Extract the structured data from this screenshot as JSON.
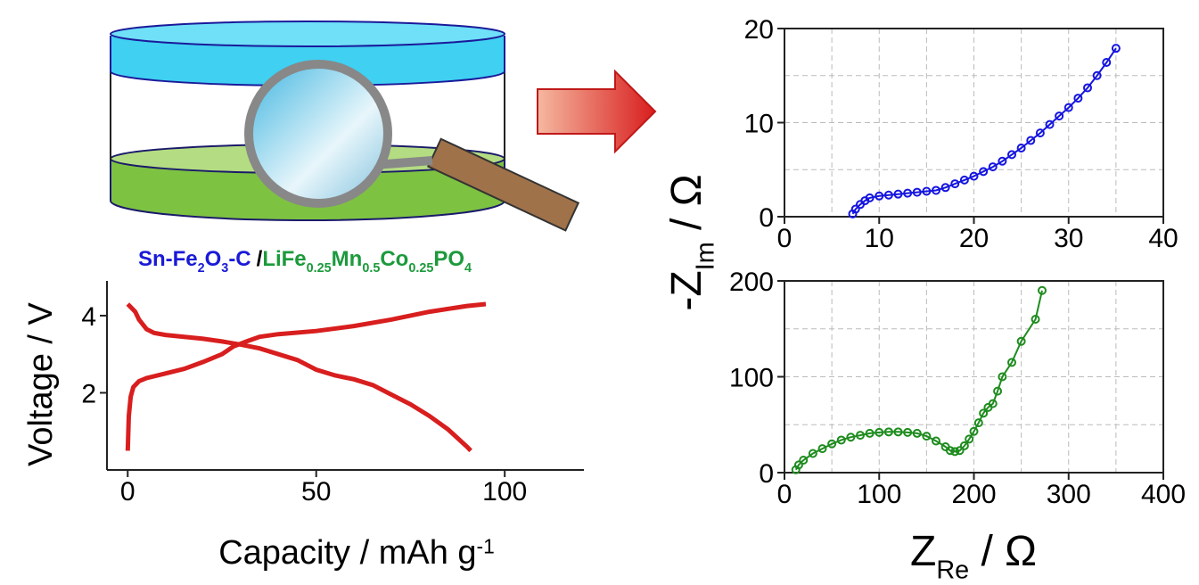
{
  "cell_label": {
    "anode": [
      "Sn-Fe",
      "2",
      "O",
      "3",
      "-C"
    ],
    "anode_color": "#1a1ad8",
    "separator": "/",
    "cathode": [
      "LiFe",
      "0.25",
      "Mn",
      "0.5",
      "Co",
      "0.25",
      "PO",
      "4"
    ],
    "cathode_color": "#1c9a3c"
  },
  "chart_data": [
    {
      "type": "line",
      "ylabel": "Voltage / V",
      "xlabel": [
        "Capacity / mAh g",
        "-1"
      ],
      "xlim": [
        -5.5,
        121
      ],
      "xticks": [
        0,
        50,
        100
      ],
      "ylim": [
        0,
        4.9
      ],
      "yticks": [
        2,
        4
      ],
      "color": "#d81e1e",
      "series": [
        {
          "x": [
            0,
            0.3,
            0.8,
            1.5,
            3,
            5,
            10,
            15,
            20,
            25,
            28,
            32,
            35,
            40,
            50,
            60,
            70,
            80,
            90,
            95
          ],
          "values": [
            0.5,
            1.4,
            1.9,
            2.15,
            2.3,
            2.38,
            2.5,
            2.62,
            2.8,
            3.0,
            3.2,
            3.35,
            3.45,
            3.52,
            3.6,
            3.73,
            3.9,
            4.1,
            4.25,
            4.3
          ]
        },
        {
          "x": [
            0,
            1,
            2,
            3,
            5,
            7,
            10,
            15,
            20,
            25,
            30,
            35,
            40,
            45,
            50,
            55,
            60,
            65,
            70,
            75,
            80,
            85,
            90,
            91
          ],
          "values": [
            4.3,
            4.2,
            4.1,
            3.9,
            3.65,
            3.55,
            3.5,
            3.45,
            3.4,
            3.33,
            3.25,
            3.15,
            3.0,
            2.85,
            2.6,
            2.45,
            2.35,
            2.2,
            1.95,
            1.7,
            1.4,
            1.05,
            0.6,
            0.5
          ]
        }
      ]
    },
    {
      "type": "scatter",
      "ylabel": [
        "-Z",
        "Im",
        " / Ω"
      ],
      "color": "#1515e0",
      "xlim": [
        0,
        40
      ],
      "xticks": [
        0,
        10,
        20,
        30,
        40
      ],
      "xminorticks": [
        5,
        15,
        25,
        35
      ],
      "ylim": [
        0,
        20
      ],
      "yticks": [
        0,
        10,
        20
      ],
      "yminorticks": [
        5,
        15
      ],
      "grid": true,
      "series": [
        {
          "x": [
            7.2,
            7.5,
            8,
            8.5,
            9,
            10,
            11,
            12,
            13,
            14,
            15,
            16,
            17,
            18,
            19,
            20,
            21,
            22,
            23,
            24,
            25,
            26,
            27,
            28,
            29,
            30,
            31,
            32,
            33,
            34,
            35
          ],
          "values": [
            0.3,
            0.8,
            1.3,
            1.7,
            2.0,
            2.2,
            2.3,
            2.4,
            2.5,
            2.6,
            2.7,
            2.8,
            3.1,
            3.5,
            3.9,
            4.3,
            4.8,
            5.3,
            5.9,
            6.6,
            7.3,
            8.1,
            8.9,
            9.8,
            10.7,
            11.6,
            12.6,
            13.7,
            15.0,
            16.4,
            17.9
          ]
        }
      ]
    },
    {
      "type": "scatter",
      "xlabel": [
        "Z",
        "Re",
        " / Ω"
      ],
      "color": "#1e8c1e",
      "xlim": [
        0,
        400
      ],
      "xticks": [
        0,
        100,
        200,
        300,
        400
      ],
      "xminorticks": [
        50,
        150,
        250,
        350
      ],
      "ylim": [
        0,
        200
      ],
      "yticks": [
        0,
        100,
        200
      ],
      "yminorticks": [
        50,
        150
      ],
      "grid": true,
      "series": [
        {
          "x": [
            12,
            15,
            20,
            30,
            40,
            50,
            60,
            70,
            80,
            90,
            100,
            110,
            120,
            130,
            140,
            150,
            160,
            170,
            175,
            180,
            185,
            190,
            195,
            200,
            205,
            210,
            215,
            220,
            225,
            230,
            240,
            250,
            265,
            272
          ],
          "values": [
            3,
            8,
            13,
            20,
            25,
            30,
            34,
            37,
            39,
            41,
            42,
            42.5,
            42.5,
            42,
            41,
            38,
            33,
            27,
            23,
            22,
            23,
            28,
            35,
            43,
            52,
            62,
            68,
            72,
            85,
            100,
            115,
            137,
            160,
            190
          ]
        }
      ]
    }
  ]
}
